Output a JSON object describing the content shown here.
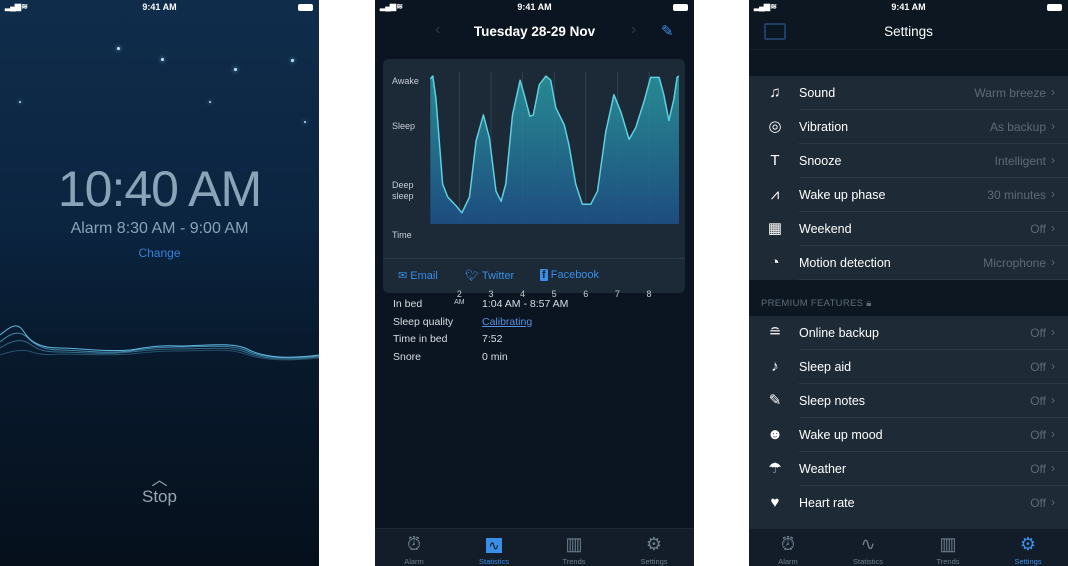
{
  "status_bar": {
    "time": "9:41 AM",
    "signal_icon": "signal-wifi-icon",
    "battery_icon": "battery-icon"
  },
  "alarm_screen": {
    "clock": "10:40 AM",
    "alarm_window": "Alarm 8:30 AM - 9:00 AM",
    "change": "Change",
    "stop": "Stop",
    "icons": [
      "moon-icon",
      "chevron-up-icon"
    ]
  },
  "statistics_screen": {
    "title": "Tuesday 28-29 Nov",
    "icons": [
      "chevron-left-icon",
      "chevron-right-icon",
      "pencil-icon"
    ],
    "share": {
      "email": "Email",
      "twitter": "Twitter",
      "facebook": "Facebook"
    },
    "details": [
      {
        "label": "In bed",
        "value": "1:04 AM - 8:57 AM"
      },
      {
        "label": "Sleep quality",
        "value": "Calibrating"
      },
      {
        "label": "Time in bed",
        "value": "7:52"
      },
      {
        "label": "Snore",
        "value": "0 min"
      }
    ]
  },
  "settings_screen": {
    "title": "Settings",
    "rows": [
      {
        "label": "Sound",
        "value": "Warm breeze",
        "icon": "music-note-icon"
      },
      {
        "label": "Vibration",
        "value": "As backup",
        "icon": "vibration-icon"
      },
      {
        "label": "Snooze",
        "value": "Intelligent",
        "icon": "snooze-icon"
      },
      {
        "label": "Wake up phase",
        "value": "30 minutes",
        "icon": "pulse-icon"
      },
      {
        "label": "Weekend",
        "value": "Off",
        "icon": "calendar-icon"
      },
      {
        "label": "Motion detection",
        "value": "Microphone",
        "icon": "radar-icon"
      }
    ],
    "premium_header": "PREMIUM FEATURES",
    "premium_rows": [
      {
        "label": "Online backup",
        "value": "Off",
        "icon": "wifi-lock-icon"
      },
      {
        "label": "Sleep aid",
        "value": "Off",
        "icon": "music-note-icon"
      },
      {
        "label": "Sleep notes",
        "value": "Off",
        "icon": "pencil-icon"
      },
      {
        "label": "Wake up mood",
        "value": "Off",
        "icon": "smiley-icon"
      },
      {
        "label": "Weather",
        "value": "Off",
        "icon": "umbrella-icon"
      },
      {
        "label": "Heart rate",
        "value": "Off",
        "icon": "heart-icon"
      }
    ]
  },
  "tabs": [
    {
      "label": "Alarm"
    },
    {
      "label": "Statistics"
    },
    {
      "label": "Trends"
    },
    {
      "label": "Settings"
    }
  ],
  "colors": {
    "accent": "#3a8ee6",
    "curve": "#5fd0e0"
  },
  "chart_data": {
    "type": "area",
    "ylabels": [
      {
        "text": "Awake",
        "level": 1
      },
      {
        "text": "Sleep",
        "level": 0.67
      },
      {
        "text": "Deep sleep",
        "level": 0.21
      }
    ],
    "xlabel": "Time",
    "xticks": [
      {
        "hour": 2,
        "label": "2",
        "sub": "AM"
      },
      {
        "hour": 3,
        "label": "3"
      },
      {
        "hour": 4,
        "label": "4"
      },
      {
        "hour": 5,
        "label": "5"
      },
      {
        "hour": 6,
        "label": "6"
      },
      {
        "hour": 7,
        "label": "7"
      },
      {
        "hour": 8,
        "label": "8"
      }
    ],
    "xlim": [
      1.07,
      8.95
    ],
    "ylim": [
      0,
      1
    ],
    "x": [
      1.08,
      1.16,
      1.26,
      1.47,
      1.63,
      1.89,
      2.08,
      2.32,
      2.53,
      2.76,
      2.95,
      3.16,
      3.32,
      3.47,
      3.68,
      3.92,
      4.05,
      4.23,
      4.34,
      4.53,
      4.74,
      4.89,
      5.05,
      5.32,
      5.47,
      5.68,
      5.89,
      6.16,
      6.37,
      6.63,
      6.89,
      7.11,
      7.37,
      7.58,
      7.84,
      8.05,
      8.32,
      8.47,
      8.63,
      8.79,
      8.89,
      8.95
    ],
    "y": [
      0.98,
      1.0,
      0.84,
      0.25,
      0.16,
      0.1,
      0.05,
      0.16,
      0.55,
      0.73,
      0.57,
      0.2,
      0.13,
      0.25,
      0.73,
      0.97,
      0.87,
      0.72,
      0.73,
      0.94,
      1.0,
      0.97,
      0.78,
      0.66,
      0.52,
      0.25,
      0.11,
      0.11,
      0.2,
      0.61,
      0.87,
      0.75,
      0.56,
      0.64,
      0.82,
      0.99,
      0.99,
      0.87,
      0.69,
      0.84,
      0.99,
      1.0
    ]
  }
}
